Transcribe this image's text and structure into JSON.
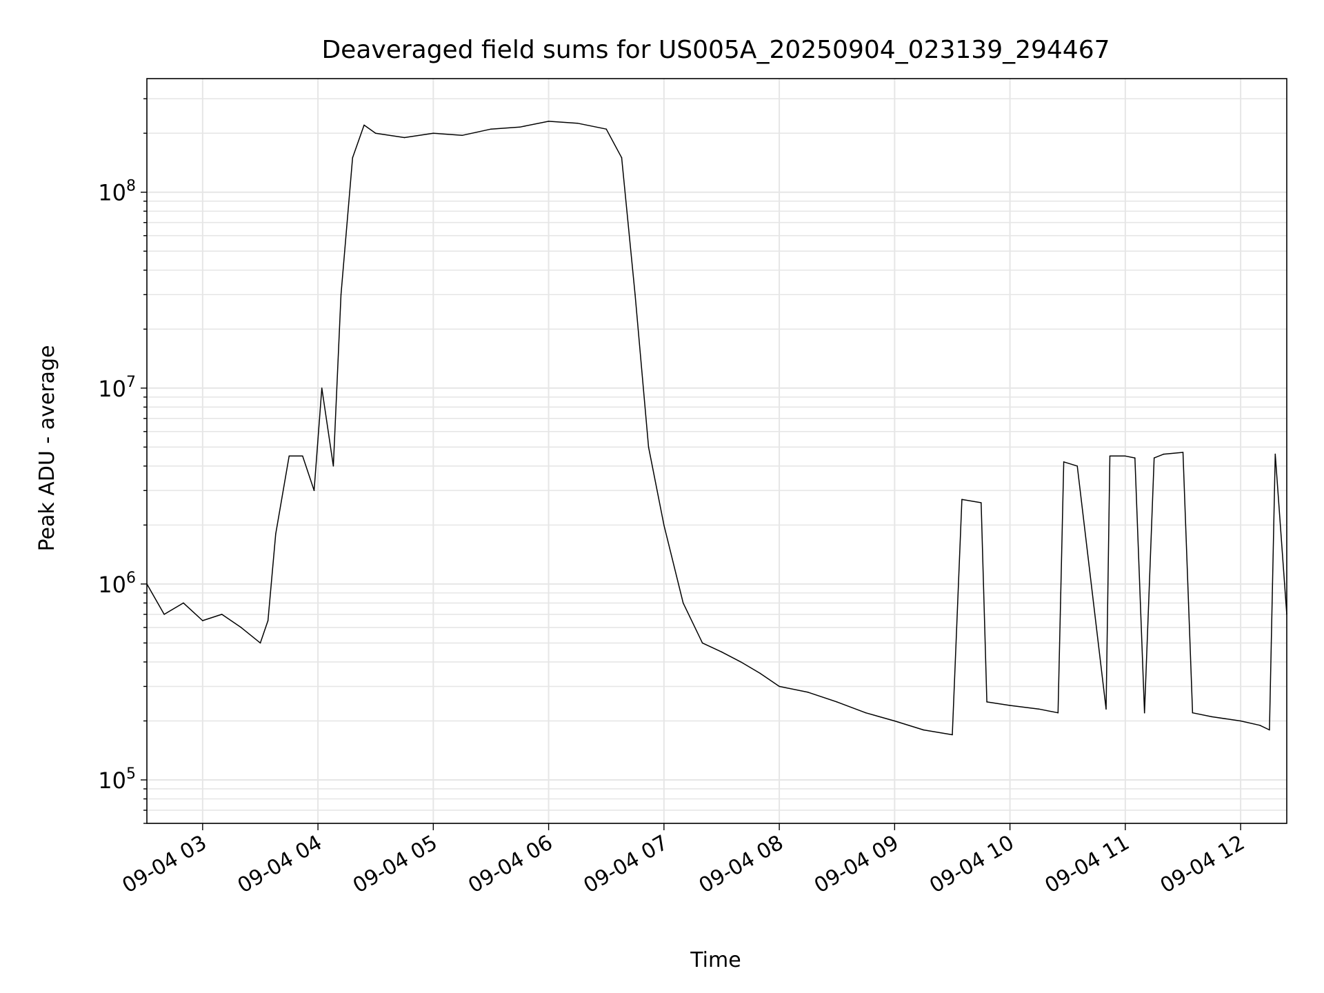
{
  "chart_data": {
    "type": "line",
    "title": "Deaveraged field sums for US005A_20250904_023139_294467",
    "xlabel": "Time",
    "ylabel": "Peak ADU - average",
    "yscale": "log",
    "grid": true,
    "grid_minor": true,
    "legend": "none",
    "xlim": [
      "2025-09-04 02:31",
      "2025-09-04 12:24"
    ],
    "ylim": [
      60000,
      380000000
    ],
    "x_ticks": [
      "09-04 03",
      "09-04 04",
      "09-04 05",
      "09-04 06",
      "09-04 07",
      "09-04 08",
      "09-04 09",
      "09-04 10",
      "09-04 11",
      "09-04 12"
    ],
    "y_ticks": [
      {
        "base": "10",
        "exp": "5"
      },
      {
        "base": "10",
        "exp": "6"
      },
      {
        "base": "10",
        "exp": "7"
      },
      {
        "base": "10",
        "exp": "8"
      }
    ],
    "colors": {
      "line": "#000000",
      "grid": "#e6e6e6",
      "axes": "#000000"
    },
    "series": [
      {
        "x": [
          "2025-09-04 02:31",
          "2025-09-04 02:40",
          "2025-09-04 02:50",
          "2025-09-04 03:00",
          "2025-09-04 03:10",
          "2025-09-04 03:20",
          "2025-09-04 03:30",
          "2025-09-04 03:34",
          "2025-09-04 03:38",
          "2025-09-04 03:45",
          "2025-09-04 03:52",
          "2025-09-04 03:58",
          "2025-09-04 04:02",
          "2025-09-04 04:08",
          "2025-09-04 04:12",
          "2025-09-04 04:18",
          "2025-09-04 04:24",
          "2025-09-04 04:30",
          "2025-09-04 04:45",
          "2025-09-04 05:00",
          "2025-09-04 05:15",
          "2025-09-04 05:30",
          "2025-09-04 05:45",
          "2025-09-04 06:00",
          "2025-09-04 06:15",
          "2025-09-04 06:30",
          "2025-09-04 06:38",
          "2025-09-04 06:45",
          "2025-09-04 06:52",
          "2025-09-04 07:00",
          "2025-09-04 07:10",
          "2025-09-04 07:20",
          "2025-09-04 07:30",
          "2025-09-04 07:40",
          "2025-09-04 07:50",
          "2025-09-04 08:00",
          "2025-09-04 08:15",
          "2025-09-04 08:30",
          "2025-09-04 08:45",
          "2025-09-04 09:00",
          "2025-09-04 09:15",
          "2025-09-04 09:30",
          "2025-09-04 09:35",
          "2025-09-04 09:45",
          "2025-09-04 09:48",
          "2025-09-04 10:00",
          "2025-09-04 10:15",
          "2025-09-04 10:25",
          "2025-09-04 10:28",
          "2025-09-04 10:35",
          "2025-09-04 10:50",
          "2025-09-04 10:52",
          "2025-09-04 11:00",
          "2025-09-04 11:05",
          "2025-09-04 11:10",
          "2025-09-04 11:15",
          "2025-09-04 11:20",
          "2025-09-04 11:30",
          "2025-09-04 11:35",
          "2025-09-04 11:45",
          "2025-09-04 12:00",
          "2025-09-04 12:10",
          "2025-09-04 12:15",
          "2025-09-04 12:18",
          "2025-09-04 12:24"
        ],
        "y": [
          1000000,
          700000,
          800000,
          650000,
          700000,
          600000,
          500000,
          650000,
          1800000,
          4500000,
          4500000,
          3000000,
          10000000,
          4000000,
          30000000,
          150000000,
          220000000,
          200000000,
          190000000,
          200000000,
          195000000,
          210000000,
          215000000,
          230000000,
          225000000,
          210000000,
          150000000,
          30000000,
          5000000,
          2000000,
          800000,
          500000,
          450000,
          400000,
          350000,
          300000,
          280000,
          250000,
          220000,
          200000,
          180000,
          170000,
          2700000,
          2600000,
          250000,
          240000,
          230000,
          220000,
          4200000,
          4000000,
          230000,
          4500000,
          4500000,
          4400000,
          220000,
          4400000,
          4600000,
          4700000,
          220000,
          210000,
          200000,
          190000,
          180000,
          4600000,
          700000
        ]
      }
    ]
  }
}
